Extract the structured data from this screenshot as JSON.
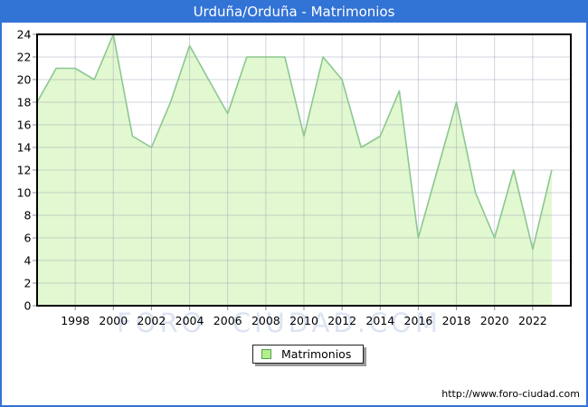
{
  "window": {
    "title": "Urduña/Orduña - Matrimonios"
  },
  "legend": {
    "label": "Matrimonios"
  },
  "footer": {
    "url": "http://www.foro-ciudad.com"
  },
  "watermark": {
    "text": "FORO CIUDAD.COM"
  },
  "colors": {
    "titlebar_bg": "#3273d6",
    "frame_border": "#3273d6",
    "plot_border": "#000000",
    "gridline": "rgba(148,154,176,0.42)",
    "tick": "#8a8a92",
    "area_fill": "#e2f8d0",
    "area_line": "#8cc791",
    "legend_swatch_fill": "#b2ee8a",
    "legend_swatch_border": "#55a055",
    "watermark_text": "#dce3f2",
    "axis_label": "#000000"
  },
  "chart_data": {
    "type": "area",
    "title": "Urduña/Orduña - Matrimonios",
    "x": [
      1996,
      1997,
      1998,
      1999,
      2000,
      2001,
      2002,
      2003,
      2004,
      2005,
      2006,
      2007,
      2008,
      2009,
      2010,
      2011,
      2012,
      2013,
      2014,
      2015,
      2016,
      2017,
      2018,
      2019,
      2020,
      2021,
      2022,
      2023
    ],
    "values": [
      18,
      21,
      21,
      20,
      24,
      15,
      14,
      18,
      23,
      20,
      17,
      22,
      22,
      22,
      15,
      22,
      20,
      14,
      15,
      19,
      6,
      12,
      18,
      10,
      6,
      12,
      5,
      12
    ],
    "series_name": "Matrimonios",
    "xlabel": "",
    "ylabel": "",
    "xlim": [
      1996,
      2024
    ],
    "ylim": [
      0,
      24
    ],
    "ytick_step": 2,
    "xticks": [
      1998,
      2000,
      2002,
      2004,
      2006,
      2008,
      2010,
      2012,
      2014,
      2016,
      2018,
      2020,
      2022
    ],
    "grid": true,
    "legend_position": "bottom-center"
  }
}
